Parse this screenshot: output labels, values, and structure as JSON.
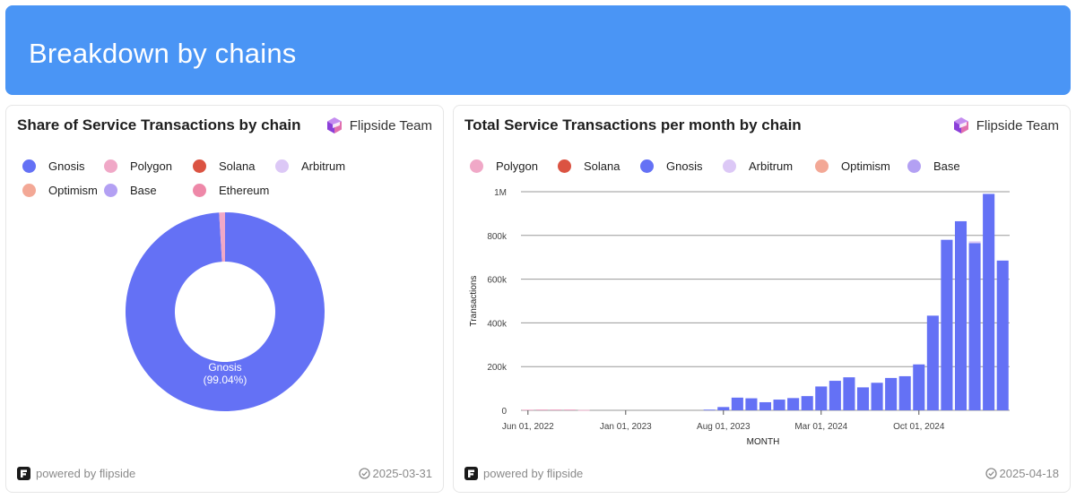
{
  "banner": {
    "title": "Breakdown by chains"
  },
  "left_card": {
    "title": "Share of Service Transactions by chain",
    "brand": "Flipside Team",
    "legend": [
      {
        "name": "Gnosis",
        "color": "#6471f5"
      },
      {
        "name": "Polygon",
        "color": "#f0a8c7"
      },
      {
        "name": "Solana",
        "color": "#db5342"
      },
      {
        "name": "Arbitrum",
        "color": "#dcc8f6"
      },
      {
        "name": "Optimism",
        "color": "#f3a896"
      },
      {
        "name": "Base",
        "color": "#b3a0f3"
      },
      {
        "name": "Ethereum",
        "color": "#ee88a8"
      }
    ],
    "footer": {
      "powered": "powered by flipside",
      "date": "2025-03-31"
    }
  },
  "right_card": {
    "title": "Total Service Transactions per month by chain",
    "brand": "Flipside Team",
    "legend": [
      {
        "name": "Polygon",
        "color": "#f0a8c7"
      },
      {
        "name": "Solana",
        "color": "#db5342"
      },
      {
        "name": "Gnosis",
        "color": "#6471f5"
      },
      {
        "name": "Arbitrum",
        "color": "#dcc8f6"
      },
      {
        "name": "Optimism",
        "color": "#f3a896"
      },
      {
        "name": "Base",
        "color": "#b3a0f3"
      }
    ],
    "footer": {
      "powered": "powered by flipside",
      "date": "2025-04-18"
    }
  },
  "chart_data": [
    {
      "type": "pie",
      "donut": true,
      "title": "Share of Service Transactions by chain",
      "slices": [
        {
          "name": "Gnosis",
          "value": 99.04,
          "color": "#6471f5",
          "label": "Gnosis",
          "pct_label": "(99.04%)"
        },
        {
          "name": "Polygon",
          "value": 0.96,
          "color": "#f0a8c7"
        }
      ],
      "legend": "top"
    },
    {
      "type": "bar",
      "stacked": true,
      "title": "Total Service Transactions per month by chain",
      "xlabel": "MONTH",
      "ylabel": "Transactions",
      "ylim": [
        0,
        1000000
      ],
      "yticks": [
        0,
        200000,
        400000,
        600000,
        800000,
        1000000
      ],
      "ytick_labels": [
        "0",
        "200k",
        "400k",
        "600k",
        "800k",
        "1M"
      ],
      "xtick_labels": [
        {
          "label": "Jun 01, 2022",
          "index": 0
        },
        {
          "label": "Jan 01, 2023",
          "index": 7
        },
        {
          "label": "Aug 01, 2023",
          "index": 14
        },
        {
          "label": "Mar 01, 2024",
          "index": 21
        },
        {
          "label": "Oct 01, 2024",
          "index": 28
        }
      ],
      "categories": [
        "2022-06",
        "2022-07",
        "2022-08",
        "2022-09",
        "2022-10",
        "2022-11",
        "2022-12",
        "2023-01",
        "2023-02",
        "2023-03",
        "2023-04",
        "2023-05",
        "2023-06",
        "2023-07",
        "2023-08",
        "2023-09",
        "2023-10",
        "2023-11",
        "2023-12",
        "2024-01",
        "2024-02",
        "2024-03",
        "2024-04",
        "2024-05",
        "2024-06",
        "2024-07",
        "2024-08",
        "2024-09",
        "2024-10",
        "2024-11",
        "2024-12",
        "2025-01",
        "2025-02",
        "2025-03",
        "2025-04"
      ],
      "series": [
        {
          "name": "Polygon",
          "color": "#f0a8c7",
          "values": [
            3000,
            4000,
            4000,
            4000,
            1500,
            0,
            0,
            0,
            0,
            0,
            0,
            0,
            0,
            0,
            0,
            0,
            0,
            0,
            0,
            0,
            0,
            0,
            0,
            0,
            0,
            0,
            0,
            0,
            0,
            0,
            0,
            0,
            0,
            0,
            0
          ]
        },
        {
          "name": "Gnosis",
          "color": "#6471f5",
          "values": [
            0,
            0,
            0,
            0,
            0,
            0,
            0,
            0,
            0,
            0,
            0,
            0,
            0,
            3000,
            15000,
            58000,
            55000,
            37000,
            49000,
            56000,
            65000,
            109000,
            135000,
            151000,
            105000,
            126000,
            148000,
            156000,
            210000,
            433000,
            780000,
            865000,
            765000,
            990000,
            685000
          ]
        },
        {
          "name": "Arbitrum",
          "color": "#dcc8f6",
          "values": [
            0,
            0,
            0,
            0,
            0,
            0,
            0,
            0,
            0,
            0,
            0,
            0,
            0,
            0,
            0,
            0,
            0,
            0,
            0,
            0,
            0,
            0,
            0,
            0,
            0,
            0,
            0,
            0,
            0,
            0,
            0,
            0,
            8000,
            0,
            0
          ]
        }
      ],
      "grid": true,
      "legend": "top"
    }
  ]
}
